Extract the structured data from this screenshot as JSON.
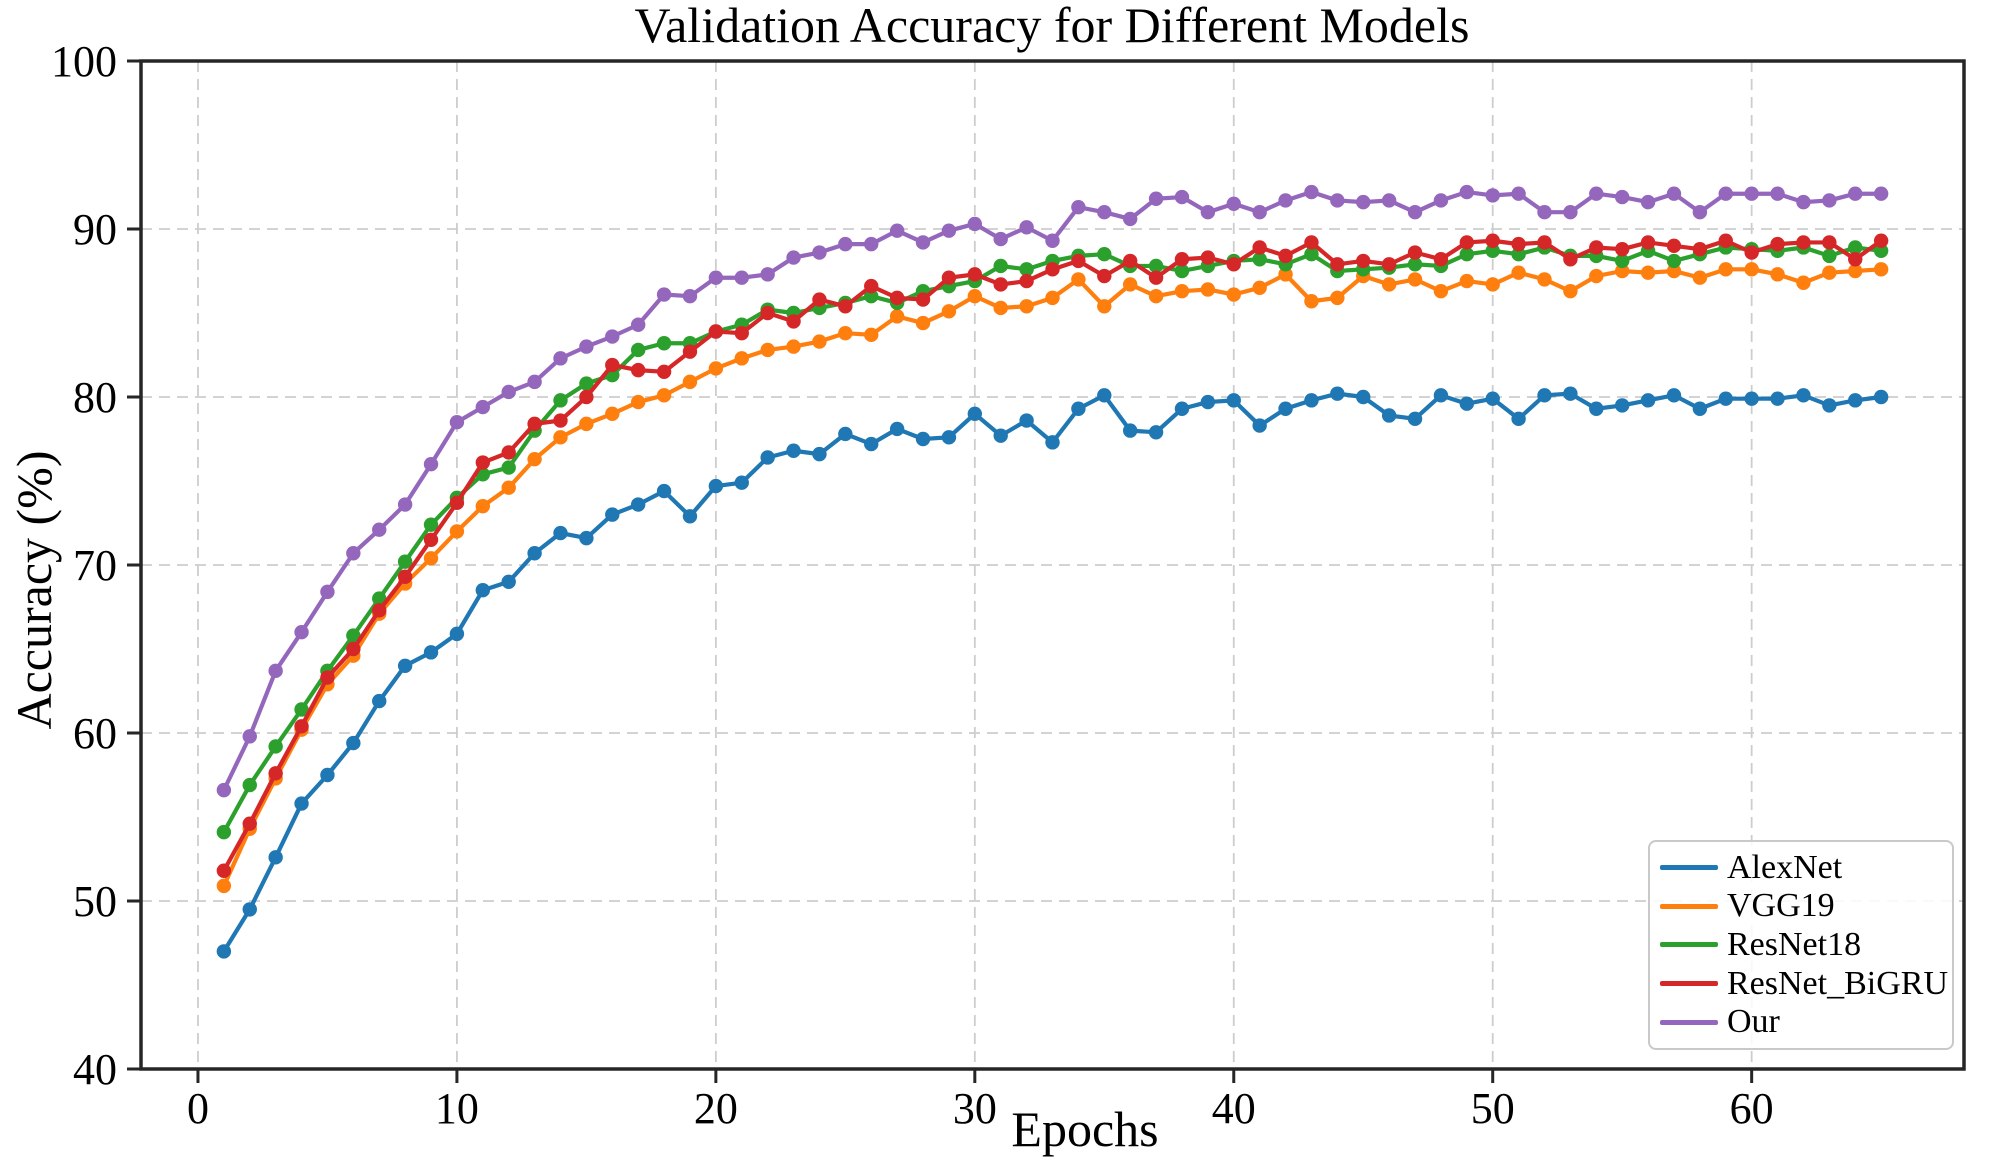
{
  "chart_data": {
    "type": "line",
    "title": "Validation Accuracy for Different Models",
    "xlabel": "Epochs",
    "ylabel": "Accuracy (%)",
    "xlim": [
      -2.2,
      68.2
    ],
    "ylim": [
      40,
      100
    ],
    "x_ticks": [
      0,
      10,
      20,
      30,
      40,
      50,
      60
    ],
    "y_ticks": [
      40,
      50,
      60,
      70,
      80,
      90,
      100
    ],
    "grid": true,
    "grid_style": "dashed",
    "grid_color": "#cdcdcd",
    "spine_color": "#262626",
    "legend_position": "lower right",
    "marker": "circle",
    "x_range": [
      1,
      65
    ],
    "series": [
      {
        "name": "AlexNet",
        "color": "#1f77b4",
        "values": [
          47.0,
          49.5,
          52.6,
          55.8,
          57.5,
          59.4,
          61.9,
          64.0,
          64.8,
          65.9,
          68.5,
          69.0,
          70.7,
          71.9,
          71.6,
          73.0,
          73.6,
          74.4,
          72.9,
          74.7,
          74.9,
          76.4,
          76.8,
          76.6,
          77.8,
          77.2,
          78.1,
          77.5,
          77.6,
          79.0,
          77.7,
          78.6,
          77.3,
          79.3,
          80.1,
          78.0,
          77.9,
          79.3,
          79.7,
          79.8,
          78.3,
          79.3,
          79.8,
          80.2,
          80.0,
          78.9,
          78.7,
          80.1,
          79.6,
          79.9,
          78.7,
          80.1,
          80.2,
          79.3,
          79.5,
          79.8,
          80.1,
          79.3,
          79.9,
          79.9,
          79.9,
          80.1,
          79.5,
          79.8,
          80.0
        ]
      },
      {
        "name": "VGG19",
        "color": "#ff7f0e",
        "values": [
          50.9,
          54.3,
          57.3,
          60.2,
          62.9,
          64.6,
          67.1,
          68.9,
          70.4,
          72.0,
          73.5,
          74.6,
          76.3,
          77.6,
          78.4,
          79.0,
          79.7,
          80.1,
          80.9,
          81.7,
          82.3,
          82.8,
          83.0,
          83.3,
          83.8,
          83.7,
          84.8,
          84.4,
          85.1,
          86.0,
          85.3,
          85.4,
          85.9,
          87.0,
          85.4,
          86.7,
          86.0,
          86.3,
          86.4,
          86.1,
          86.5,
          87.3,
          85.7,
          85.9,
          87.2,
          86.7,
          87.0,
          86.3,
          86.9,
          86.7,
          87.4,
          87.0,
          86.3,
          87.2,
          87.5,
          87.4,
          87.5,
          87.1,
          87.6,
          87.6,
          87.3,
          86.8,
          87.4,
          87.5,
          87.6
        ]
      },
      {
        "name": "ResNet18",
        "color": "#2ca02c",
        "values": [
          54.1,
          56.9,
          59.2,
          61.4,
          63.7,
          65.8,
          68.0,
          70.2,
          72.4,
          74.0,
          75.4,
          75.8,
          78.0,
          79.8,
          80.8,
          81.3,
          82.8,
          83.2,
          83.2,
          83.9,
          84.3,
          85.2,
          85.0,
          85.3,
          85.6,
          86.0,
          85.6,
          86.3,
          86.6,
          86.9,
          87.8,
          87.6,
          88.1,
          88.4,
          88.5,
          87.8,
          87.8,
          87.5,
          87.8,
          88.1,
          88.2,
          87.9,
          88.5,
          87.5,
          87.6,
          87.7,
          87.9,
          87.8,
          88.5,
          88.7,
          88.5,
          88.9,
          88.4,
          88.4,
          88.1,
          88.7,
          88.1,
          88.5,
          88.9,
          88.8,
          88.7,
          88.9,
          88.4,
          88.9,
          88.7
        ]
      },
      {
        "name": "ResNet_BiGRU",
        "color": "#d62728",
        "values": [
          51.8,
          54.6,
          57.6,
          60.4,
          63.3,
          65.0,
          67.3,
          69.3,
          71.5,
          73.7,
          76.1,
          76.7,
          78.4,
          78.6,
          80.0,
          81.9,
          81.6,
          81.5,
          82.7,
          83.9,
          83.8,
          85.0,
          84.5,
          85.8,
          85.4,
          86.6,
          85.9,
          85.8,
          87.1,
          87.3,
          86.7,
          86.9,
          87.6,
          88.1,
          87.2,
          88.1,
          87.1,
          88.2,
          88.3,
          87.9,
          88.9,
          88.4,
          89.2,
          87.9,
          88.1,
          87.9,
          88.6,
          88.2,
          89.2,
          89.3,
          89.1,
          89.2,
          88.2,
          88.9,
          88.8,
          89.2,
          89.0,
          88.8,
          89.3,
          88.6,
          89.1,
          89.2,
          89.2,
          88.2,
          89.3
        ]
      },
      {
        "name": "Our",
        "color": "#9467bd",
        "values": [
          56.6,
          59.8,
          63.7,
          66.0,
          68.4,
          70.7,
          72.1,
          73.6,
          76.0,
          78.5,
          79.4,
          80.3,
          80.9,
          82.3,
          83.0,
          83.6,
          84.3,
          86.1,
          86.0,
          87.1,
          87.1,
          87.3,
          88.3,
          88.6,
          89.1,
          89.1,
          89.9,
          89.2,
          89.9,
          90.3,
          89.4,
          90.1,
          89.3,
          91.3,
          91.0,
          90.6,
          91.8,
          91.9,
          91.0,
          91.5,
          91.0,
          91.7,
          92.2,
          91.7,
          91.6,
          91.7,
          91.0,
          91.7,
          92.2,
          92.0,
          92.1,
          91.0,
          91.0,
          92.1,
          91.9,
          91.6,
          92.1,
          91.0,
          92.1,
          92.1,
          92.1,
          91.6,
          91.7,
          92.1,
          92.1
        ]
      }
    ]
  }
}
